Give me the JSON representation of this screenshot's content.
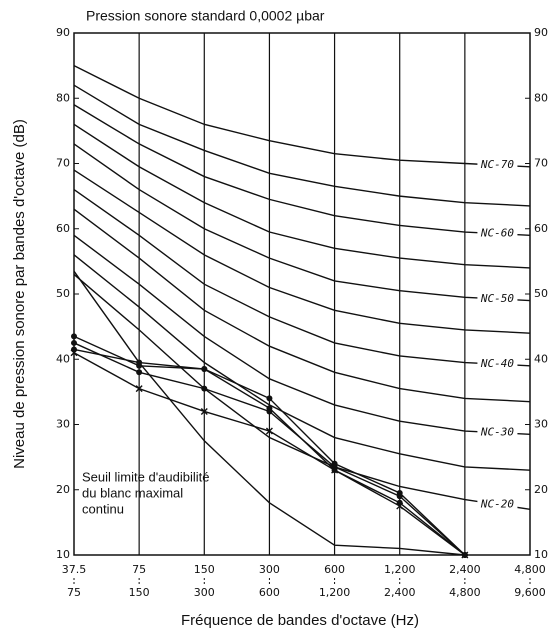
{
  "chart_data": {
    "type": "line",
    "title": "Pression sonore standard 0,0002 µbar",
    "x_label": "Fréquence de bandes d'octave (Hz)",
    "y_label": "Niveau de pression sonore par bandes d'octave (dB)",
    "categories": [
      [
        "37.5",
        "75"
      ],
      [
        "75",
        "150"
      ],
      [
        "150",
        "300"
      ],
      [
        "300",
        "600"
      ],
      [
        "600",
        "1,200"
      ],
      [
        "1,200",
        "2,400"
      ],
      [
        "2,400",
        "4,800"
      ],
      [
        "4,800",
        "9,600"
      ]
    ],
    "ylim": [
      10,
      90
    ],
    "yticks": [
      10,
      20,
      30,
      40,
      50,
      60,
      70,
      80,
      90
    ],
    "annotation": [
      "Seuil limite d'audibilité",
      "du blanc maximal",
      "continu"
    ],
    "series": [
      {
        "name": "NC-70",
        "color": "#111",
        "marker": "none",
        "values": [
          85,
          80,
          76,
          73.5,
          71.5,
          70.5,
          70,
          69.5
        ]
      },
      {
        "name": null,
        "color": "#111",
        "marker": "none",
        "values": [
          82,
          76,
          72,
          68.5,
          66.5,
          65,
          64,
          63.5
        ]
      },
      {
        "name": "NC-60",
        "color": "#111",
        "marker": "none",
        "values": [
          79,
          73,
          68,
          64.5,
          62,
          60.5,
          59.5,
          59
        ]
      },
      {
        "name": null,
        "color": "#111",
        "marker": "none",
        "values": [
          76,
          69.5,
          64,
          59.5,
          57,
          55.5,
          54.5,
          54
        ]
      },
      {
        "name": "NC-50",
        "color": "#111",
        "marker": "none",
        "values": [
          73,
          66,
          60,
          55.5,
          52,
          50.5,
          49.5,
          49
        ]
      },
      {
        "name": null,
        "color": "#111",
        "marker": "none",
        "values": [
          69,
          62.5,
          56,
          51,
          47.5,
          45.5,
          44.5,
          44
        ]
      },
      {
        "name": "NC-40",
        "color": "#111",
        "marker": "none",
        "values": [
          66,
          59,
          51.5,
          46.5,
          42.5,
          40.5,
          39.5,
          39
        ]
      },
      {
        "name": null,
        "color": "#111",
        "marker": "none",
        "values": [
          63,
          55.5,
          47.5,
          42,
          38,
          35.5,
          34,
          33.5
        ]
      },
      {
        "name": "NC-30",
        "color": "#111",
        "marker": "none",
        "values": [
          59,
          51.5,
          43.5,
          37,
          33,
          30.5,
          29,
          28.5
        ]
      },
      {
        "name": null,
        "color": "#111",
        "marker": "none",
        "values": [
          56,
          48,
          39.5,
          33,
          28,
          25.5,
          23.5,
          23
        ]
      },
      {
        "name": "NC-20",
        "color": "#111",
        "marker": "none",
        "values": [
          53,
          44.5,
          35.5,
          28,
          23.5,
          20.5,
          18.5,
          17
        ]
      },
      {
        "name": null,
        "color": "#111",
        "marker": "none",
        "values": [
          53.5,
          39.5,
          27.5,
          18,
          11.5,
          11,
          10,
          null
        ]
      },
      {
        "name": null,
        "color": "#111",
        "marker": "dot",
        "values": [
          43.5,
          39,
          38.5,
          34,
          24,
          19.5,
          10,
          null
        ]
      },
      {
        "name": null,
        "color": "#111",
        "marker": "dot",
        "values": [
          42.5,
          38,
          35.5,
          32,
          23.5,
          19,
          10,
          null
        ]
      },
      {
        "name": null,
        "color": "#111",
        "marker": "dot",
        "values": [
          41.5,
          39.5,
          38.5,
          32.5,
          23,
          18,
          10,
          null
        ]
      },
      {
        "name": null,
        "color": "#111",
        "marker": "x",
        "values": [
          41,
          35.5,
          32,
          29,
          23,
          17.5,
          10,
          null
        ]
      }
    ]
  }
}
